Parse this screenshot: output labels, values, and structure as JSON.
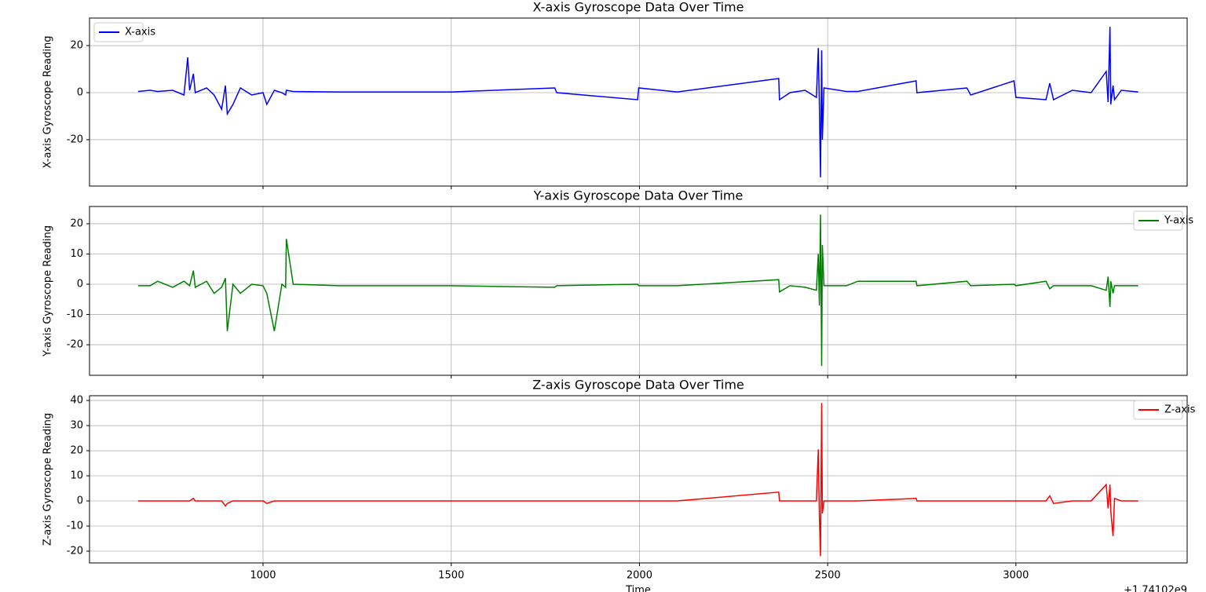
{
  "chart_data": [
    {
      "type": "line",
      "title": "X-axis Gyroscope Data Over Time",
      "ylabel": "X-axis Gyroscope Reading",
      "x": [
        668,
        700,
        720,
        760,
        790,
        800,
        805,
        815,
        820,
        850,
        870,
        890,
        900,
        905,
        920,
        940,
        970,
        1000,
        1010,
        1030,
        1050,
        1060,
        1062,
        1080,
        1200,
        1500,
        1775,
        1780,
        1995,
        1998,
        2100,
        2370,
        2372,
        2400,
        2440,
        2470,
        2475,
        2478,
        2481,
        2484,
        2486,
        2490,
        2550,
        2580,
        2735,
        2737,
        2870,
        2880,
        2995,
        3000,
        3080,
        3090,
        3100,
        3150,
        3200,
        3240,
        3245,
        3250,
        3252,
        3258,
        3262,
        3280,
        3325
      ],
      "series": [
        {
          "name": "X-axis",
          "color": "#0000ff",
          "values": [
            0.5,
            1,
            0.5,
            1,
            -1,
            15,
            1,
            8,
            0,
            2,
            -1,
            -7,
            3,
            -9,
            -5,
            2,
            -1,
            0,
            -5,
            1,
            0,
            -1,
            1,
            0.5,
            0.3,
            0.3,
            2,
            0,
            -3,
            2,
            0.3,
            6,
            -3,
            0,
            1,
            -2,
            19,
            -5,
            -36,
            18,
            -20,
            2,
            0.5,
            0.5,
            5,
            0,
            2,
            -1,
            5,
            -2,
            -3,
            4,
            -3,
            1,
            0,
            9,
            -4,
            28,
            -5,
            3,
            -3,
            1,
            0.3
          ]
        }
      ],
      "xlim": [
        539,
        3455
      ],
      "ylim": [
        -39.7,
        31.7
      ],
      "yticks": [
        -20,
        0,
        20
      ],
      "grid": true,
      "legend": "upper left"
    },
    {
      "type": "line",
      "title": "Y-axis Gyroscope Data Over Time",
      "ylabel": "Y-axis Gyroscope Reading",
      "x": [
        668,
        700,
        720,
        760,
        790,
        800,
        805,
        815,
        820,
        850,
        870,
        890,
        900,
        905,
        920,
        940,
        970,
        1000,
        1010,
        1030,
        1050,
        1060,
        1062,
        1080,
        1200,
        1500,
        1775,
        1780,
        1995,
        1998,
        2100,
        2370,
        2372,
        2400,
        2440,
        2470,
        2475,
        2478,
        2481,
        2484,
        2486,
        2490,
        2550,
        2580,
        2735,
        2737,
        2870,
        2880,
        2995,
        3000,
        3080,
        3090,
        3100,
        3150,
        3200,
        3240,
        3245,
        3250,
        3252,
        3258,
        3262,
        3280,
        3325
      ],
      "series": [
        {
          "name": "Y-axis",
          "color": "#008000",
          "values": [
            -0.5,
            -0.5,
            1,
            -1,
            1,
            0,
            -0.5,
            4.5,
            -1,
            1,
            -3,
            -1,
            2,
            -15.5,
            0,
            -3,
            0,
            -0.5,
            -3,
            -15.5,
            0,
            -1,
            15,
            0,
            -0.5,
            -0.5,
            -1,
            -0.5,
            0,
            -0.5,
            -0.5,
            1.5,
            -2.5,
            -0.5,
            -1,
            -2,
            10,
            -7,
            23,
            -27,
            13,
            -0.5,
            -0.5,
            1,
            1,
            -0.5,
            1,
            -0.5,
            0,
            -0.5,
            1,
            -1.5,
            -0.5,
            -0.5,
            -0.5,
            -2,
            2.5,
            -7.5,
            1,
            -3,
            -0.5,
            -0.5,
            -0.5
          ]
        }
      ],
      "xlim": [
        539,
        3455
      ],
      "ylim": [
        -30.1,
        25.7
      ],
      "yticks": [
        -20,
        -10,
        0,
        10,
        20
      ],
      "grid": true,
      "legend": "upper right"
    },
    {
      "type": "line",
      "title": "Z-axis Gyroscope Data Over Time",
      "ylabel": "Z-axis Gyroscope Reading",
      "xlabel": "Time",
      "x_offset_label": "+1.74102e9",
      "x": [
        668,
        700,
        720,
        760,
        790,
        800,
        805,
        815,
        820,
        850,
        870,
        890,
        900,
        905,
        920,
        940,
        970,
        1000,
        1010,
        1030,
        1050,
        1060,
        1062,
        1080,
        1200,
        1500,
        1775,
        1780,
        1995,
        1998,
        2100,
        2370,
        2372,
        2400,
        2440,
        2470,
        2475,
        2478,
        2481,
        2484,
        2486,
        2490,
        2550,
        2580,
        2735,
        2737,
        2870,
        2880,
        2995,
        3000,
        3080,
        3090,
        3100,
        3150,
        3200,
        3240,
        3245,
        3250,
        3252,
        3258,
        3262,
        3280,
        3325
      ],
      "series": [
        {
          "name": "Z-axis",
          "color": "#ff0000",
          "values": [
            0,
            0,
            0,
            0,
            0,
            0,
            0,
            1,
            0,
            0,
            0,
            0,
            -2,
            -1,
            0,
            0,
            0,
            0,
            -1,
            0,
            0,
            0,
            0,
            0,
            0,
            0,
            0,
            0,
            0,
            0,
            0,
            3.5,
            0,
            0,
            0,
            0,
            20.5,
            -6,
            -22,
            39,
            -5,
            0,
            0,
            0,
            1,
            0,
            0,
            0,
            0,
            0,
            0,
            2,
            -1,
            0,
            0,
            6.5,
            -3,
            6.5,
            -4,
            -14,
            1,
            0,
            0
          ]
        }
      ],
      "xlim": [
        539,
        3455
      ],
      "ylim": [
        -24.7,
        41.9
      ],
      "yticks": [
        -20,
        -10,
        0,
        10,
        20,
        30,
        40
      ],
      "xticks": [
        1000,
        1500,
        2000,
        2500,
        3000
      ],
      "grid": true,
      "legend": "upper right"
    }
  ]
}
